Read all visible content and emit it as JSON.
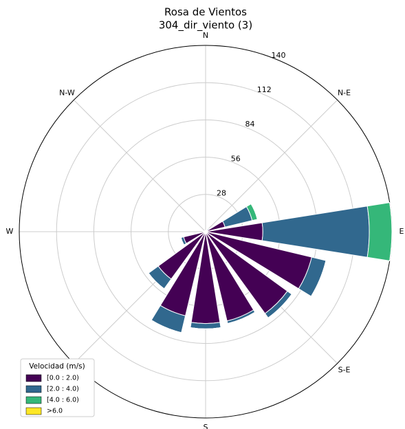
{
  "chart_data": {
    "type": "windrose",
    "title": "Rosa de Vientos",
    "subtitle": "304_dir_viento (3)",
    "categories": [
      "N",
      null,
      "N-E",
      null,
      "E",
      null,
      "S-E",
      null,
      "S",
      null,
      null,
      null,
      "W",
      null,
      "N-W",
      null
    ],
    "series": [
      {
        "name": "[0.0 : 2.0)",
        "color": "#440154",
        "values": [
          1,
          1,
          2,
          15,
          43,
          82,
          76,
          69,
          69,
          65,
          44,
          17,
          2,
          1,
          1,
          1
        ]
      },
      {
        "name": "[2.0 : 4.0)",
        "color": "#31688e",
        "values": [
          0,
          0,
          1,
          21,
          80,
          11,
          4,
          2,
          4,
          13,
          9,
          2,
          0,
          0,
          0,
          0
        ]
      },
      {
        "name": "[4.0 : 6.0)",
        "color": "#35b779",
        "values": [
          0,
          0,
          0,
          4,
          17,
          0,
          0,
          0,
          0,
          0,
          0,
          0,
          0,
          0,
          0,
          0
        ]
      },
      {
        "name": ">6.0",
        "color": "#fde725",
        "values": [
          0,
          0,
          0,
          0,
          0,
          0,
          0,
          0,
          0,
          0,
          0,
          0,
          0,
          0,
          0,
          0
        ]
      }
    ],
    "legend_title": "Velocidad (m/s)",
    "legend_position": "lower left",
    "ylim": [
      0,
      140
    ],
    "yticks": [
      28,
      56,
      84,
      112,
      140
    ],
    "grid": true
  }
}
